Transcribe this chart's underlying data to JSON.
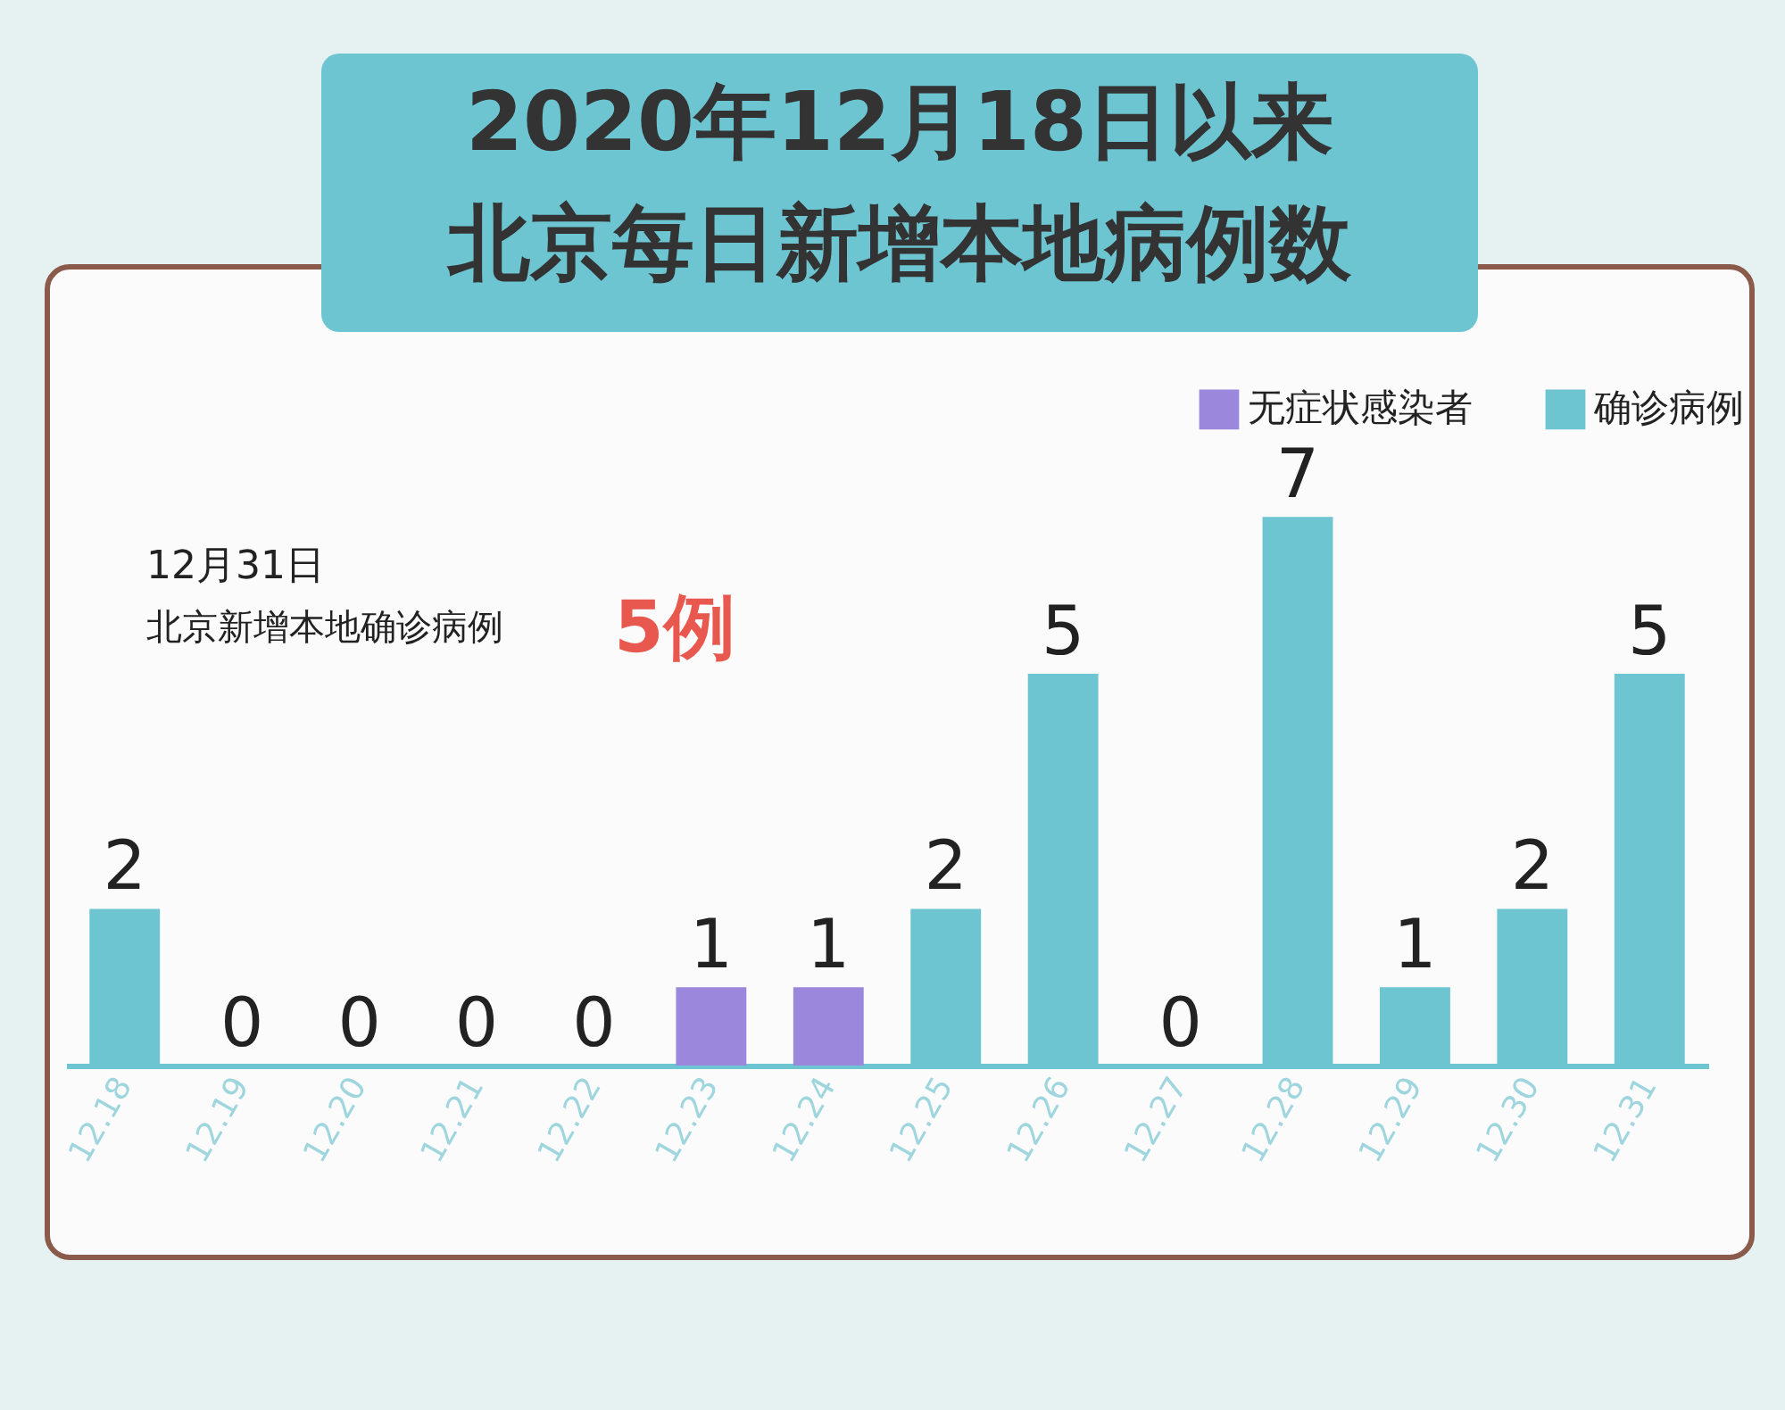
{
  "chart_data": {
    "type": "bar",
    "title": "2020年12月18日以来",
    "subtitle": "北京每日新增本地病例数",
    "categories": [
      "12.18",
      "12.19",
      "12.20",
      "12.21",
      "12.22",
      "12.23",
      "12.24",
      "12.25",
      "12.26",
      "12.27",
      "12.28",
      "12.29",
      "12.30",
      "12.31"
    ],
    "series": [
      {
        "name": "无症状感染者",
        "color": "#9b87dc",
        "values": [
          null,
          null,
          null,
          null,
          null,
          1,
          1,
          null,
          null,
          null,
          null,
          null,
          null,
          null
        ]
      },
      {
        "name": "确诊病例",
        "color": "#6cc5d1",
        "values": [
          2,
          0,
          0,
          0,
          0,
          null,
          null,
          2,
          5,
          0,
          7,
          1,
          2,
          5
        ]
      }
    ],
    "data_labels": true,
    "legend": "top right",
    "annotations": [
      "12月31日",
      "北京新增本地确诊病例",
      "5例"
    ]
  }
}
